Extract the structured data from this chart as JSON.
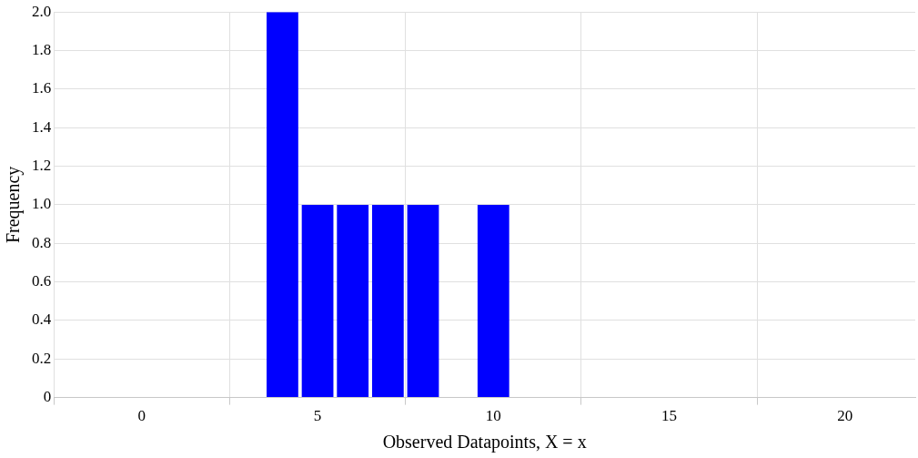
{
  "chart_data": {
    "type": "histogram",
    "xlabel": "Observed Datapoints, X = x",
    "ylabel": "Frequency",
    "bins": [
      3.5,
      4.5,
      5.5,
      6.5,
      7.5,
      8.5,
      9.5,
      10.5
    ],
    "values": [
      2,
      1,
      1,
      1,
      1,
      0,
      1
    ],
    "color": "#0000ff",
    "xlim": [
      -2.5,
      22
    ],
    "xticks": [
      {
        "value": -2.5,
        "label": null
      },
      0,
      {
        "value": 2.5,
        "label": null
      },
      5,
      {
        "value": 7.5,
        "label": null
      },
      10,
      {
        "value": 12.5,
        "label": null
      },
      15,
      {
        "value": 17.5,
        "label": null
      },
      20
    ],
    "ylim": [
      0,
      2
    ],
    "yticks": [
      0,
      0.2,
      0.4,
      0.6,
      0.8,
      {
        "value": 1,
        "label": "1.0"
      },
      1.2,
      1.4,
      1.6,
      1.8,
      {
        "value": 2,
        "label": "2.0"
      }
    ],
    "grid": true,
    "legend": false
  }
}
